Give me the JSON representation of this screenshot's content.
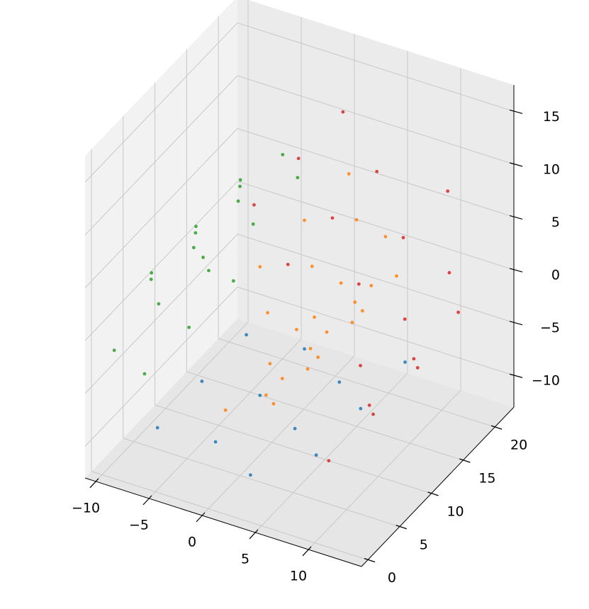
{
  "chart_data": {
    "type": "scatter3d",
    "xlim": [
      -11,
      15
    ],
    "ylim": [
      -1,
      23
    ],
    "zlim": [
      -13,
      17.5
    ],
    "xticks": [
      {
        "value": -10,
        "label": "−10"
      },
      {
        "value": -5,
        "label": "−5"
      },
      0,
      5,
      10
    ],
    "yticks": [
      0,
      5,
      10,
      15,
      20
    ],
    "zticks": [
      {
        "value": -10,
        "label": "−10"
      },
      {
        "value": -5,
        "label": "−5"
      },
      0,
      5,
      10,
      15
    ],
    "grid": true,
    "series": [
      {
        "color": "#1f77b4",
        "x": [
          -5.98,
          -5.98,
          -5.98,
          -2.31,
          -2.31,
          -2.31,
          2.17,
          2.17,
          2.17,
          6.56,
          6.56,
          6.56
        ],
        "y": [
          2,
          9,
          16,
          5,
          12,
          19,
          3,
          10,
          17,
          6,
          13,
          20
        ],
        "z": [
          -8.51,
          -8.51,
          -8.51,
          -10.55,
          -10.55,
          -10.55,
          -10.99,
          -10.99,
          -10.99,
          -9.57,
          -9.57,
          -9.57
        ]
      },
      {
        "color": "#ff7f0e",
        "x": [
          0.42,
          0.42,
          0.42,
          2.44,
          2.44,
          2.44,
          4.34,
          4.34,
          4.34,
          5.76,
          5.76,
          5.76,
          6.36,
          6.36,
          6.36,
          5.91,
          5.91,
          5.91,
          4.38,
          4.38,
          4.38,
          1.87,
          1.87,
          1.87
        ],
        "y": [
          2,
          9,
          16,
          5,
          12,
          19,
          3,
          10,
          17,
          6,
          13,
          20,
          1,
          8,
          15,
          4,
          11,
          18,
          2,
          9,
          16,
          5,
          12,
          19
        ],
        "z": [
          -4.78,
          -4.78,
          -4.78,
          -4.59,
          -4.59,
          -4.59,
          -3.54,
          -3.54,
          -3.54,
          -1.68,
          -1.68,
          -1.68,
          0.75,
          0.75,
          0.75,
          3.36,
          3.36,
          3.36,
          5.71,
          5.71,
          5.71,
          7.37,
          7.37,
          7.37
        ]
      },
      {
        "color": "#2ca02c",
        "x": [
          -1.16,
          -1.16,
          -1.16,
          -4.36,
          -4.36,
          -4.36,
          -7.14,
          -7.14,
          -7.14,
          -8.97,
          -8.97,
          -8.97,
          -9.45,
          -9.45,
          -9.45,
          -8.39,
          -8.39,
          -8.39
        ],
        "y": [
          2,
          9,
          16,
          5,
          12,
          19,
          3,
          10,
          17,
          6,
          13,
          20,
          1,
          8,
          15,
          4,
          11,
          18
        ],
        "z": [
          7.92,
          7.92,
          7.92,
          7.18,
          7.18,
          7.18,
          5.15,
          5.15,
          5.15,
          2.06,
          2.06,
          2.06,
          -1.67,
          -1.67,
          -1.67,
          -5.44,
          -5.44,
          -5.44
        ]
      },
      {
        "color": "#d62728",
        "x": [
          10.13,
          10.13,
          10.13,
          12.16,
          12.16,
          12.16,
          12.51,
          12.51,
          12.51,
          10.57,
          10.57,
          10.57,
          6.89,
          6.89,
          6.89,
          1.91,
          1.91,
          1.91
        ],
        "y": [
          2,
          9,
          16,
          5,
          12,
          19,
          3,
          10,
          17,
          6,
          13,
          20,
          1,
          8,
          15,
          4,
          11,
          18
        ],
        "z": [
          -6.44,
          -6.44,
          -6.44,
          -2.42,
          -2.42,
          -2.42,
          2.7,
          2.7,
          2.7,
          7.91,
          7.91,
          7.91,
          11.72,
          11.72,
          11.72,
          13.87,
          13.87,
          13.87
        ]
      }
    ]
  }
}
